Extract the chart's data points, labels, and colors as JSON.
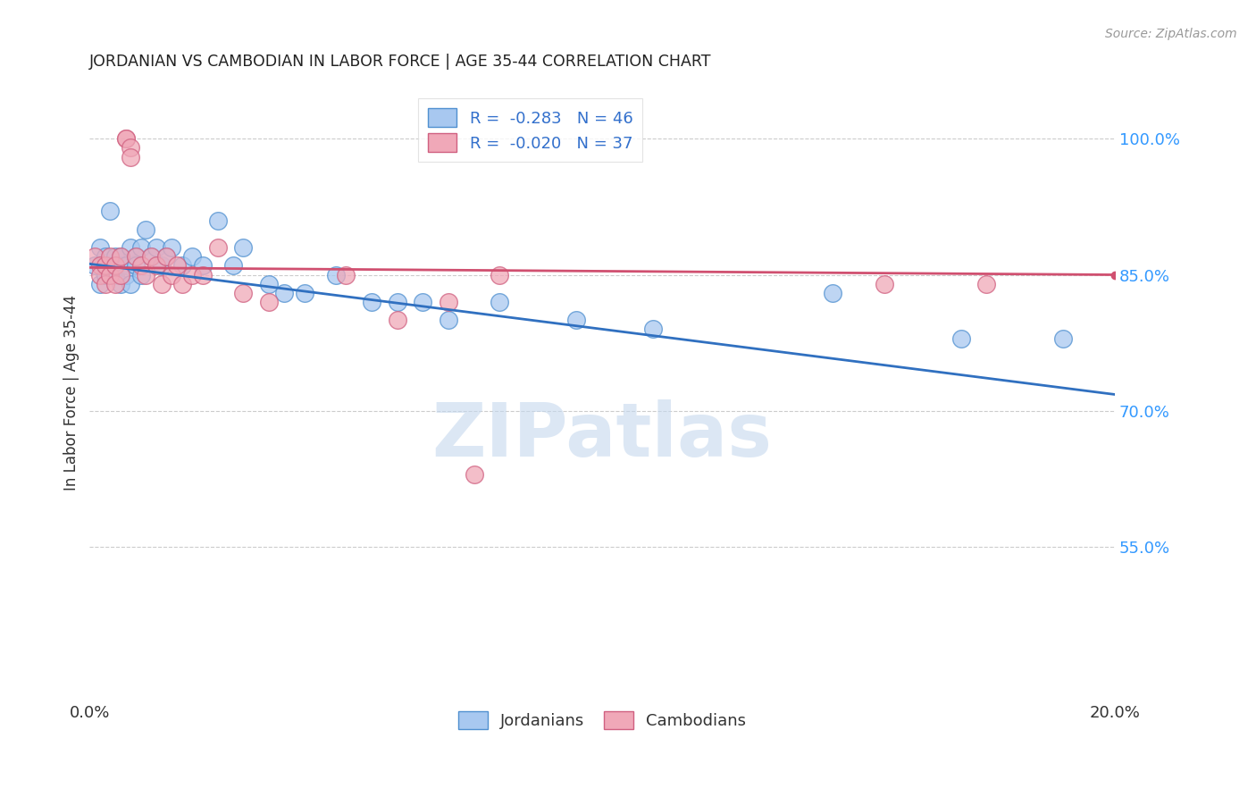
{
  "title": "JORDANIAN VS CAMBODIAN IN LABOR FORCE | AGE 35-44 CORRELATION CHART",
  "source": "Source: ZipAtlas.com",
  "ylabel": "In Labor Force | Age 35-44",
  "ytick_labels": [
    "100.0%",
    "85.0%",
    "70.0%",
    "55.0%"
  ],
  "ytick_values": [
    1.0,
    0.85,
    0.7,
    0.55
  ],
  "xlim": [
    0.0,
    0.2
  ],
  "ylim": [
    0.38,
    1.06
  ],
  "watermark": "ZIPatlas",
  "legend_blue_label": "R =  -0.283   N = 46",
  "legend_pink_label": "R =  -0.020   N = 37",
  "blue_scatter_x": [
    0.001,
    0.002,
    0.002,
    0.003,
    0.003,
    0.004,
    0.004,
    0.005,
    0.005,
    0.006,
    0.006,
    0.006,
    0.007,
    0.007,
    0.008,
    0.008,
    0.009,
    0.009,
    0.01,
    0.01,
    0.011,
    0.012,
    0.013,
    0.014,
    0.015,
    0.016,
    0.018,
    0.02,
    0.022,
    0.025,
    0.028,
    0.03,
    0.035,
    0.038,
    0.042,
    0.048,
    0.055,
    0.06,
    0.065,
    0.07,
    0.08,
    0.095,
    0.11,
    0.145,
    0.17,
    0.19
  ],
  "blue_scatter_y": [
    0.86,
    0.88,
    0.84,
    0.87,
    0.85,
    0.86,
    0.92,
    0.85,
    0.87,
    0.86,
    0.84,
    0.87,
    0.86,
    0.85,
    0.88,
    0.84,
    0.87,
    0.86,
    0.88,
    0.85,
    0.9,
    0.87,
    0.88,
    0.86,
    0.87,
    0.88,
    0.86,
    0.87,
    0.86,
    0.91,
    0.86,
    0.88,
    0.84,
    0.83,
    0.83,
    0.85,
    0.82,
    0.82,
    0.82,
    0.8,
    0.82,
    0.8,
    0.79,
    0.83,
    0.78,
    0.78
  ],
  "pink_scatter_x": [
    0.001,
    0.002,
    0.002,
    0.003,
    0.003,
    0.004,
    0.004,
    0.005,
    0.005,
    0.006,
    0.006,
    0.007,
    0.007,
    0.008,
    0.008,
    0.009,
    0.01,
    0.011,
    0.012,
    0.013,
    0.014,
    0.015,
    0.016,
    0.017,
    0.018,
    0.02,
    0.022,
    0.025,
    0.03,
    0.035,
    0.05,
    0.06,
    0.07,
    0.075,
    0.08,
    0.155,
    0.175
  ],
  "pink_scatter_y": [
    0.87,
    0.86,
    0.85,
    0.84,
    0.86,
    0.87,
    0.85,
    0.86,
    0.84,
    0.87,
    0.85,
    1.0,
    1.0,
    0.99,
    0.98,
    0.87,
    0.86,
    0.85,
    0.87,
    0.86,
    0.84,
    0.87,
    0.85,
    0.86,
    0.84,
    0.85,
    0.85,
    0.88,
    0.83,
    0.82,
    0.85,
    0.8,
    0.82,
    0.63,
    0.85,
    0.84,
    0.84
  ],
  "blue_color": "#A8C8F0",
  "pink_color": "#F0A8B8",
  "blue_edge_color": "#5090D0",
  "pink_edge_color": "#D06080",
  "blue_line_color": "#3070C0",
  "pink_line_color": "#D05070",
  "grid_color": "#CCCCCC",
  "background_color": "#FFFFFF",
  "title_color": "#222222",
  "axis_label_color": "#333333",
  "ytick_color": "#3399FF",
  "xtick_color": "#333333",
  "source_color": "#999999",
  "legend_text_color": "#3370CC",
  "watermark_color": "#C5D8EE"
}
